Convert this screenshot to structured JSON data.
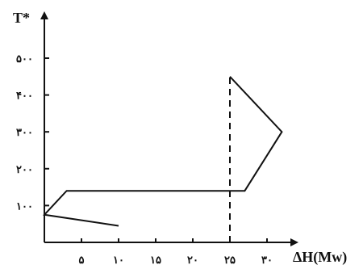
{
  "chart_data": {
    "type": "line",
    "xlabel": "ΔH(Mw)",
    "ylabel": "T*",
    "xlim": [
      0,
      34
    ],
    "ylim": [
      0,
      530
    ],
    "x_ticks": [
      {
        "value": 5,
        "label": "۵"
      },
      {
        "value": 10,
        "label": "۱۰"
      },
      {
        "value": 15,
        "label": "۱۵"
      },
      {
        "value": 20,
        "label": "۲۰"
      },
      {
        "value": 25,
        "label": "۲۵"
      },
      {
        "value": 30,
        "label": "۳۰"
      }
    ],
    "y_ticks": [
      {
        "value": 100,
        "label": "۱۰۰"
      },
      {
        "value": 200,
        "label": "۲۰۰"
      },
      {
        "value": 300,
        "label": "۳۰۰"
      },
      {
        "value": 400,
        "label": "۴۰۰"
      },
      {
        "value": 500,
        "label": "۵۰۰"
      }
    ],
    "grid": false,
    "series": [
      {
        "style": "solid",
        "color": "#111111",
        "points": [
          [
            10,
            45
          ],
          [
            0,
            75
          ],
          [
            3,
            140
          ],
          [
            27,
            140
          ],
          [
            32,
            300
          ],
          [
            25,
            450
          ]
        ]
      },
      {
        "style": "dashed",
        "color": "#111111",
        "points": [
          [
            25,
            0
          ],
          [
            25,
            450
          ]
        ]
      }
    ]
  }
}
